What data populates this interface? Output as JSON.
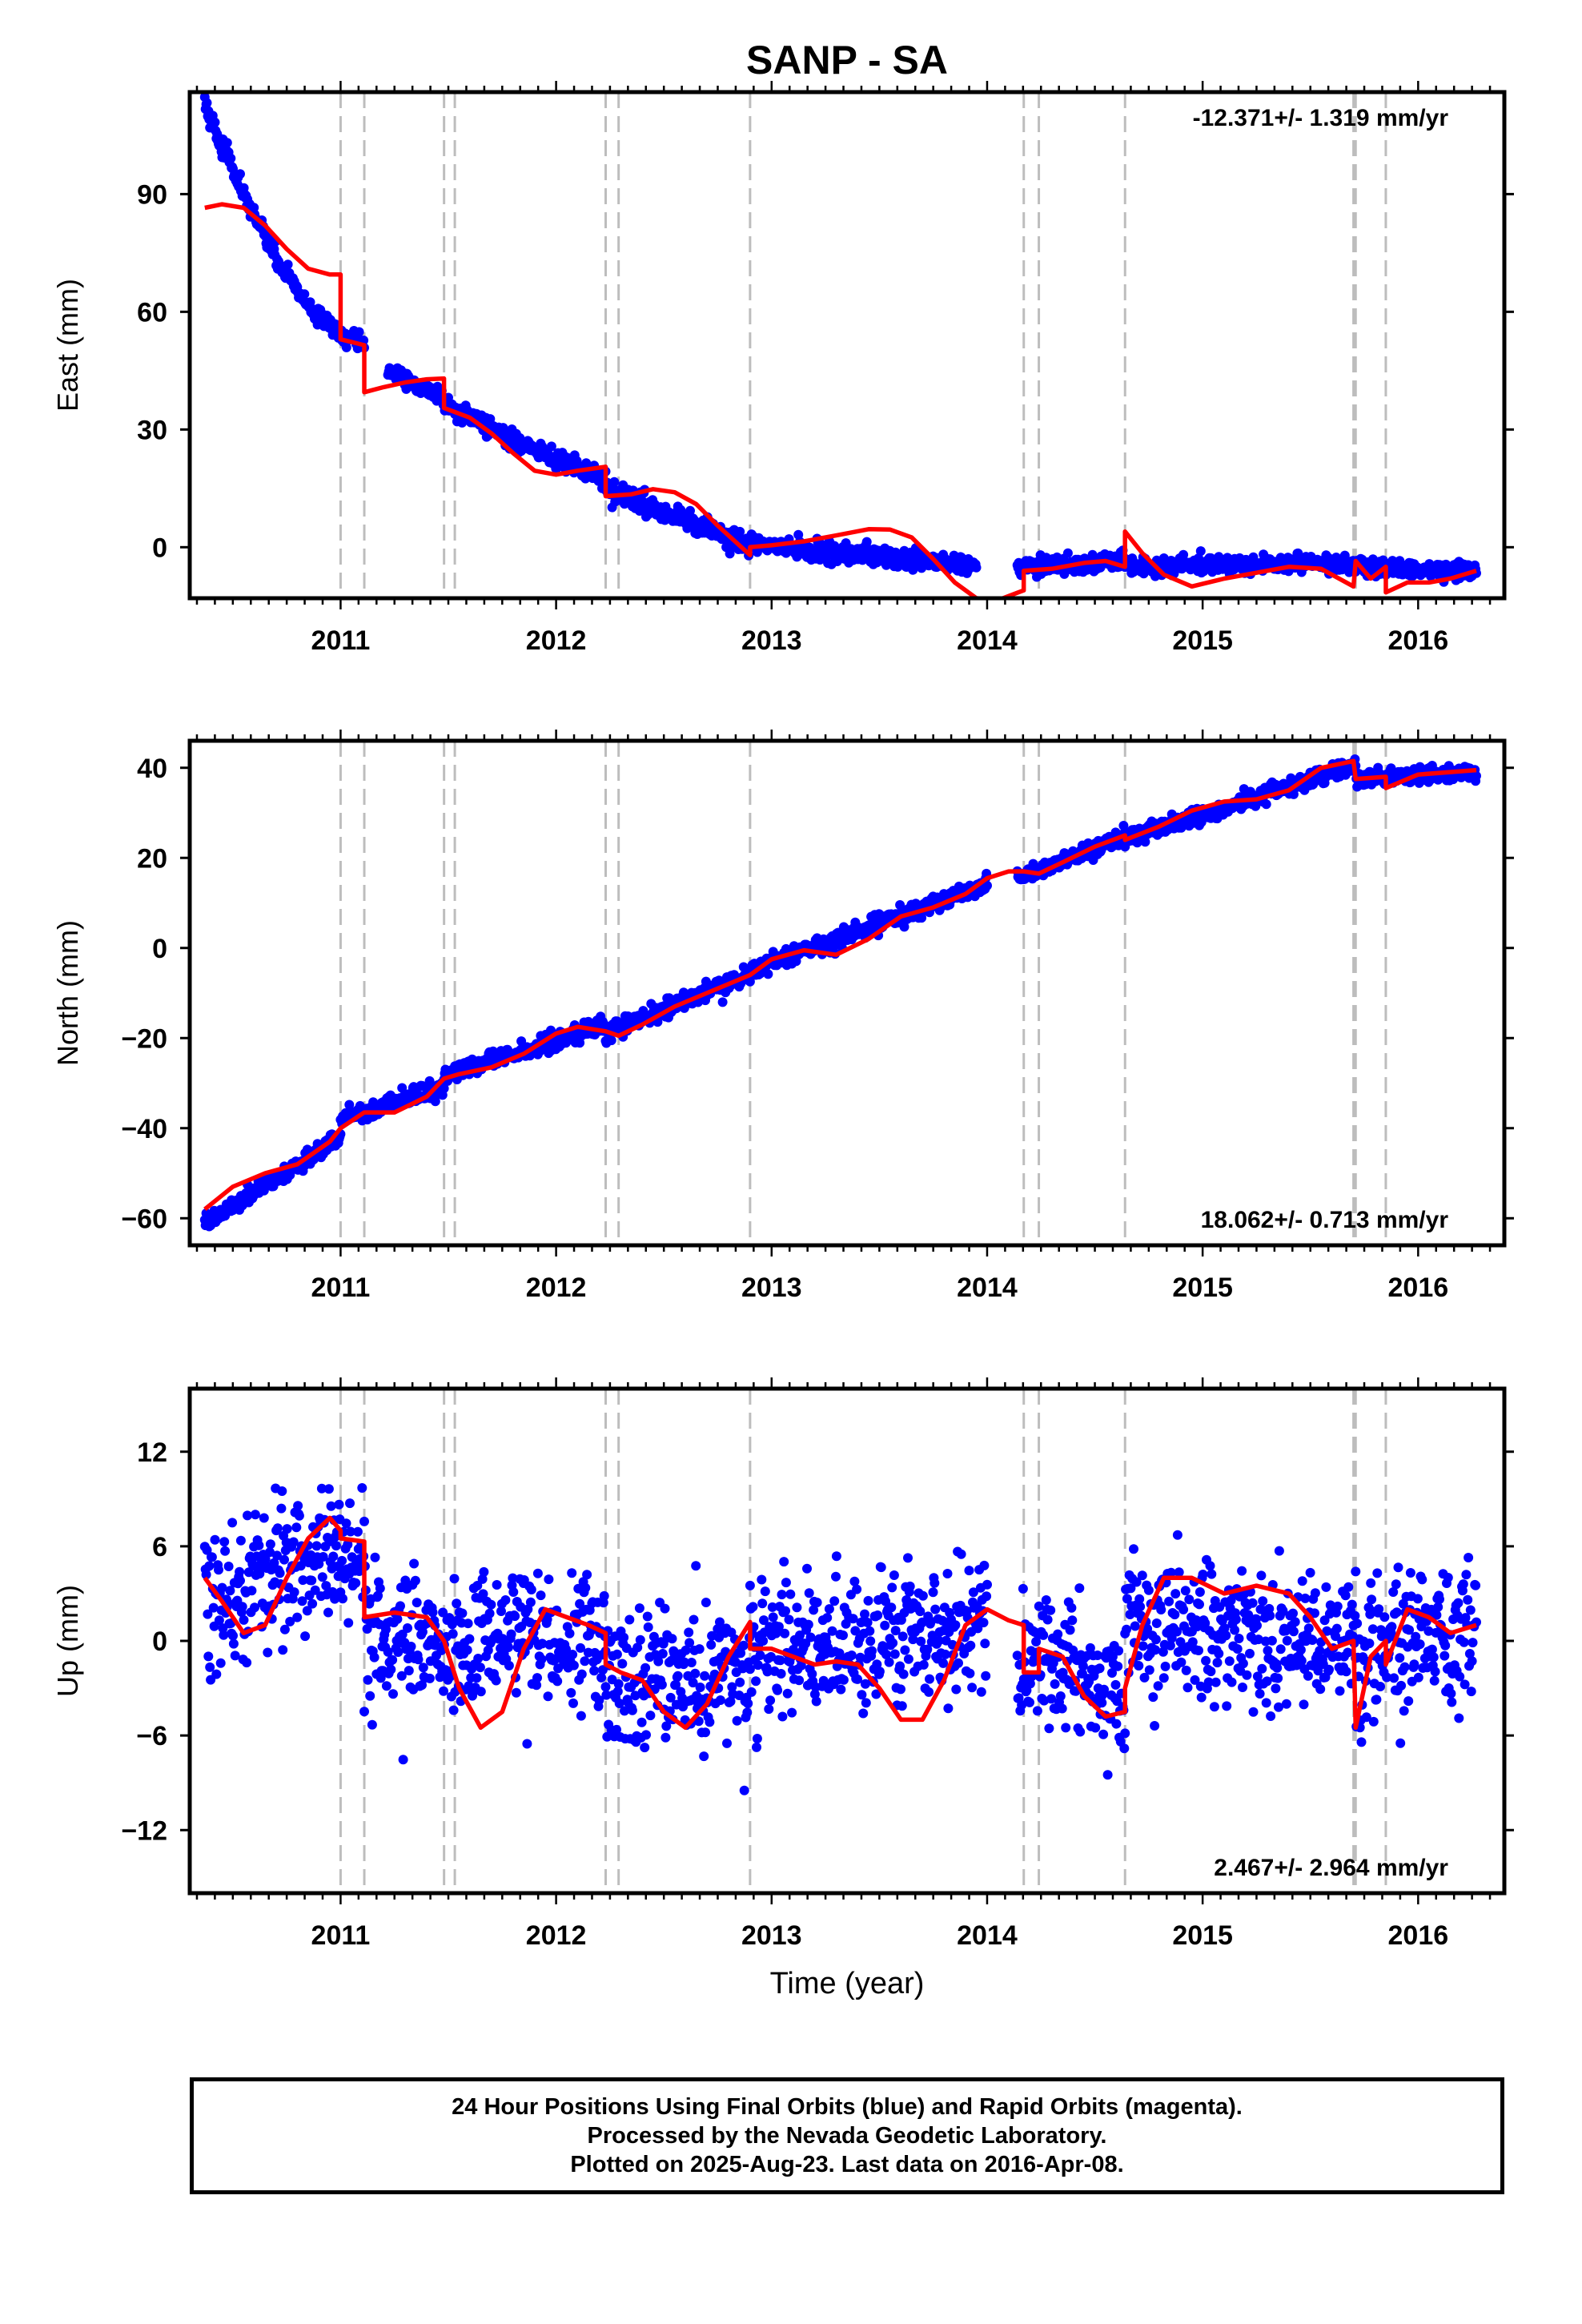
{
  "title": "SANP - SA",
  "caption": {
    "line1": "24 Hour Positions Using Final Orbits (blue) and Rapid Orbits (magenta).",
    "line2": "Processed by the Nevada Geodetic Laboratory.",
    "line3": "Plotted on 2025-Aug-23. Last data on 2016-Apr-08."
  },
  "colors": {
    "final_orbits": "#0000ff",
    "model": "#ff0000",
    "event_lines": "#bdbdbd",
    "axes": "#000000"
  },
  "chart_data": [
    {
      "type": "scatter",
      "component": "east",
      "ylabel": "East (mm)",
      "xlabel": "",
      "rate_label": "-12.371+/- 1.319 mm/yr",
      "rate_position": "top-right",
      "xlim": [
        2010.3,
        2016.4
      ],
      "ylim": [
        -13,
        116
      ],
      "yticks": [
        0,
        30,
        60,
        90
      ],
      "xticks": [
        2011,
        2012,
        2013,
        2014,
        2015,
        2016
      ],
      "event_lines": [
        2011.0,
        2011.11,
        2011.48,
        2011.53,
        2012.23,
        2012.29,
        2012.9,
        2014.17,
        2014.24,
        2014.64,
        2015.7,
        2015.71,
        2015.85
      ],
      "model": [
        [
          2010.37,
          86.5
        ],
        [
          2010.45,
          87.4
        ],
        [
          2010.55,
          86.5
        ],
        [
          2010.65,
          82
        ],
        [
          2010.75,
          76
        ],
        [
          2010.85,
          71
        ],
        [
          2010.95,
          69.5
        ],
        [
          2011.0,
          69.5
        ],
        [
          2011.0,
          53
        ],
        [
          2011.11,
          51.5
        ],
        [
          2011.11,
          39.5
        ],
        [
          2011.2,
          40.8
        ],
        [
          2011.3,
          42
        ],
        [
          2011.4,
          42.8
        ],
        [
          2011.48,
          43
        ],
        [
          2011.48,
          35.5
        ],
        [
          2011.6,
          33
        ],
        [
          2011.7,
          29
        ],
        [
          2011.8,
          24
        ],
        [
          2011.9,
          19.5
        ],
        [
          2012.0,
          18.5
        ],
        [
          2012.1,
          19.5
        ],
        [
          2012.23,
          20.5
        ],
        [
          2012.23,
          13
        ],
        [
          2012.35,
          13.5
        ],
        [
          2012.45,
          14.8
        ],
        [
          2012.55,
          14
        ],
        [
          2012.65,
          11
        ],
        [
          2012.75,
          5.5
        ],
        [
          2012.9,
          -2
        ],
        [
          2012.9,
          0
        ],
        [
          2013.0,
          0.5
        ],
        [
          2013.15,
          1.5
        ],
        [
          2013.3,
          3
        ],
        [
          2013.45,
          4.6
        ],
        [
          2013.55,
          4.5
        ],
        [
          2013.65,
          2.5
        ],
        [
          2013.75,
          -3
        ],
        [
          2013.85,
          -9
        ],
        [
          2013.95,
          -13
        ],
        [
          2014.05,
          -13.5
        ],
        [
          2014.17,
          -11
        ],
        [
          2014.17,
          -6
        ],
        [
          2014.3,
          -5.5
        ],
        [
          2014.45,
          -4
        ],
        [
          2014.55,
          -3.5
        ],
        [
          2014.64,
          -5
        ],
        [
          2014.64,
          4
        ],
        [
          2014.72,
          -1.5
        ],
        [
          2014.82,
          -7
        ],
        [
          2014.95,
          -10
        ],
        [
          2015.1,
          -8
        ],
        [
          2015.25,
          -6.5
        ],
        [
          2015.4,
          -5
        ],
        [
          2015.55,
          -5.5
        ],
        [
          2015.7,
          -10
        ],
        [
          2015.71,
          -3.5
        ],
        [
          2015.78,
          -8
        ],
        [
          2015.85,
          -5
        ],
        [
          2015.85,
          -11.5
        ],
        [
          2015.95,
          -9
        ],
        [
          2016.05,
          -9
        ],
        [
          2016.15,
          -8
        ],
        [
          2016.27,
          -6
        ]
      ],
      "observations": {
        "description": "24 hour daily positions (final orbits)",
        "segments": [
          {
            "t0": 2010.37,
            "t1": 2011.0,
            "y0": 113,
            "y1": 55,
            "curve": 1.5,
            "scatter": 2.2
          },
          {
            "t0": 2011.0,
            "t1": 2011.11,
            "y0": 54,
            "y1": 52,
            "curve": 1,
            "scatter": 2
          },
          {
            "t0": 2011.22,
            "t1": 2011.48,
            "y0": 45,
            "y1": 38,
            "curve": 1,
            "scatter": 2
          },
          {
            "t0": 2011.48,
            "t1": 2012.23,
            "y0": 37,
            "y1": 17.5,
            "curve": 1.2,
            "scatter": 2.2
          },
          {
            "t0": 2012.23,
            "t1": 2012.9,
            "y0": 15,
            "y1": 0,
            "curve": 1,
            "scatter": 2.5
          },
          {
            "t0": 2012.9,
            "t1": 2013.95,
            "y0": 1,
            "y1": -5,
            "curve": 1,
            "scatter": 2
          },
          {
            "t0": 2014.14,
            "t1": 2014.64,
            "y0": -5.5,
            "y1": -3.5,
            "curve": 1,
            "scatter": 2
          },
          {
            "t0": 2014.64,
            "t1": 2015.71,
            "y0": -5,
            "y1": -4,
            "curve": 1,
            "scatter": 2
          },
          {
            "t0": 2015.71,
            "t1": 2016.27,
            "y0": -5,
            "y1": -6,
            "curve": 1,
            "scatter": 2
          }
        ]
      }
    },
    {
      "type": "scatter",
      "component": "north",
      "ylabel": "North (mm)",
      "xlabel": "",
      "rate_label": "18.062+/- 0.713 mm/yr",
      "rate_position": "bottom-right",
      "xlim": [
        2010.3,
        2016.4
      ],
      "ylim": [
        -66,
        46
      ],
      "yticks": [
        -60,
        -40,
        -20,
        0,
        20,
        40
      ],
      "xticks": [
        2011,
        2012,
        2013,
        2014,
        2015,
        2016
      ],
      "event_lines": [
        2011.0,
        2011.11,
        2011.48,
        2011.53,
        2012.23,
        2012.29,
        2012.9,
        2014.17,
        2014.24,
        2014.64,
        2015.7,
        2015.71,
        2015.85
      ],
      "model": [
        [
          2010.37,
          -58
        ],
        [
          2010.5,
          -53
        ],
        [
          2010.65,
          -50
        ],
        [
          2010.8,
          -48
        ],
        [
          2010.95,
          -43
        ],
        [
          2011.0,
          -40
        ],
        [
          2011.11,
          -36.5
        ],
        [
          2011.25,
          -36.5
        ],
        [
          2011.4,
          -33
        ],
        [
          2011.48,
          -29
        ],
        [
          2011.55,
          -28
        ],
        [
          2011.7,
          -26.5
        ],
        [
          2011.85,
          -23.5
        ],
        [
          2012.0,
          -19
        ],
        [
          2012.1,
          -17.5
        ],
        [
          2012.23,
          -18.5
        ],
        [
          2012.29,
          -19.5
        ],
        [
          2012.4,
          -17
        ],
        [
          2012.55,
          -13
        ],
        [
          2012.7,
          -10
        ],
        [
          2012.9,
          -6
        ],
        [
          2013.0,
          -2.5
        ],
        [
          2013.15,
          -0.5
        ],
        [
          2013.3,
          -1.5
        ],
        [
          2013.45,
          2
        ],
        [
          2013.6,
          7
        ],
        [
          2013.75,
          9
        ],
        [
          2013.9,
          12
        ],
        [
          2014.0,
          15.5
        ],
        [
          2014.1,
          17
        ],
        [
          2014.17,
          17
        ],
        [
          2014.24,
          16.5
        ],
        [
          2014.35,
          19
        ],
        [
          2014.5,
          22.5
        ],
        [
          2014.64,
          25
        ],
        [
          2014.64,
          24
        ],
        [
          2014.8,
          27
        ],
        [
          2014.95,
          30.5
        ],
        [
          2015.1,
          32.5
        ],
        [
          2015.25,
          33
        ],
        [
          2015.4,
          35
        ],
        [
          2015.55,
          40
        ],
        [
          2015.7,
          41.5
        ],
        [
          2015.71,
          37.5
        ],
        [
          2015.85,
          38
        ],
        [
          2015.85,
          35.5
        ],
        [
          2016.0,
          38.5
        ],
        [
          2016.27,
          39.5
        ]
      ],
      "observations": {
        "description": "24 hour daily positions (final orbits)",
        "segments": [
          {
            "t0": 2010.37,
            "t1": 2011.0,
            "y0": -61,
            "y1": -42,
            "curve": 0,
            "scatter": 1.7
          },
          {
            "t0": 2011.0,
            "t1": 2011.48,
            "y0": -38,
            "y1": -31,
            "curve": 0,
            "scatter": 1.7
          },
          {
            "t0": 2011.48,
            "t1": 2012.23,
            "y0": -28,
            "y1": -17,
            "curve": 0,
            "scatter": 1.8
          },
          {
            "t0": 2012.23,
            "t1": 2012.9,
            "y0": -19,
            "y1": -6,
            "curve": 0,
            "scatter": 1.8
          },
          {
            "t0": 2012.9,
            "t1": 2014.0,
            "y0": -5,
            "y1": 14,
            "curve": 0,
            "scatter": 1.8
          },
          {
            "t0": 2014.14,
            "t1": 2014.64,
            "y0": 15.5,
            "y1": 24.5,
            "curve": 0,
            "scatter": 1.6
          },
          {
            "t0": 2014.64,
            "t1": 2015.71,
            "y0": 24,
            "y1": 40.5,
            "curve": 0,
            "scatter": 1.7
          },
          {
            "t0": 2015.71,
            "t1": 2016.27,
            "y0": 37.5,
            "y1": 39,
            "curve": 0,
            "scatter": 1.6
          }
        ]
      }
    },
    {
      "type": "scatter",
      "component": "up",
      "ylabel": "Up (mm)",
      "xlabel": "Time (year)",
      "rate_label": "2.467+/- 2.964 mm/yr",
      "rate_position": "bottom-right",
      "xlim": [
        2010.3,
        2016.4
      ],
      "ylim": [
        -16,
        16
      ],
      "yticks": [
        -12,
        -6,
        0,
        6,
        12
      ],
      "xticks": [
        2011,
        2012,
        2013,
        2014,
        2015,
        2016
      ],
      "event_lines": [
        2011.0,
        2011.11,
        2011.48,
        2011.53,
        2012.23,
        2012.29,
        2012.9,
        2014.17,
        2014.24,
        2014.64,
        2015.7,
        2015.71,
        2015.85
      ],
      "model": [
        [
          2010.37,
          4
        ],
        [
          2010.45,
          2.5
        ],
        [
          2010.55,
          0.5
        ],
        [
          2010.65,
          1
        ],
        [
          2010.75,
          4
        ],
        [
          2010.85,
          6.5
        ],
        [
          2010.95,
          7.8
        ],
        [
          2011.0,
          7
        ],
        [
          2011.0,
          6.5
        ],
        [
          2011.11,
          6.3
        ],
        [
          2011.11,
          1.5
        ],
        [
          2011.25,
          1.8
        ],
        [
          2011.4,
          1.5
        ],
        [
          2011.48,
          0
        ],
        [
          2011.55,
          -3
        ],
        [
          2011.65,
          -5.5
        ],
        [
          2011.75,
          -4.5
        ],
        [
          2011.85,
          -0.5
        ],
        [
          2011.95,
          2
        ],
        [
          2012.05,
          1.5
        ],
        [
          2012.15,
          1
        ],
        [
          2012.23,
          0.5
        ],
        [
          2012.23,
          -1.5
        ],
        [
          2012.3,
          -2
        ],
        [
          2012.4,
          -2.5
        ],
        [
          2012.5,
          -4.5
        ],
        [
          2012.6,
          -5.5
        ],
        [
          2012.7,
          -4
        ],
        [
          2012.8,
          -1
        ],
        [
          2012.9,
          1.2
        ],
        [
          2012.9,
          -0.5
        ],
        [
          2013.0,
          -0.5
        ],
        [
          2013.1,
          -1
        ],
        [
          2013.2,
          -1.5
        ],
        [
          2013.3,
          -1.3
        ],
        [
          2013.4,
          -1.5
        ],
        [
          2013.5,
          -3
        ],
        [
          2013.6,
          -5
        ],
        [
          2013.7,
          -5
        ],
        [
          2013.8,
          -2.5
        ],
        [
          2013.9,
          1
        ],
        [
          2014.0,
          2
        ],
        [
          2014.1,
          1.3
        ],
        [
          2014.17,
          1
        ],
        [
          2014.17,
          -2
        ],
        [
          2014.24,
          -2
        ],
        [
          2014.24,
          -0.5
        ],
        [
          2014.35,
          -1
        ],
        [
          2014.45,
          -3.5
        ],
        [
          2014.55,
          -4.8
        ],
        [
          2014.64,
          -4.5
        ],
        [
          2014.64,
          -3
        ],
        [
          2014.72,
          1
        ],
        [
          2014.82,
          4
        ],
        [
          2014.95,
          4
        ],
        [
          2015.1,
          3
        ],
        [
          2015.25,
          3.5
        ],
        [
          2015.4,
          3
        ],
        [
          2015.5,
          1.5
        ],
        [
          2015.6,
          -0.5
        ],
        [
          2015.7,
          0
        ],
        [
          2015.71,
          -5.5
        ],
        [
          2015.78,
          -1
        ],
        [
          2015.85,
          0
        ],
        [
          2015.85,
          -1.5
        ],
        [
          2015.95,
          2
        ],
        [
          2016.05,
          1.5
        ],
        [
          2016.15,
          0.5
        ],
        [
          2016.27,
          1
        ]
      ],
      "observations": {
        "description": "24 hour daily positions (final orbits)",
        "segments": [
          {
            "t0": 2010.37,
            "t1": 2011.11,
            "y0": 3,
            "y1": 6,
            "curve": 0,
            "scatter": 4
          },
          {
            "t0": 2011.11,
            "t1": 2012.23,
            "y0": 0,
            "y1": 0,
            "curve": 0,
            "scatter": 4
          },
          {
            "t0": 2012.23,
            "t1": 2012.9,
            "y0": -3,
            "y1": -2,
            "curve": 0,
            "scatter": 4
          },
          {
            "t0": 2012.9,
            "t1": 2014.0,
            "y0": -1,
            "y1": 1,
            "curve": 0,
            "scatter": 4
          },
          {
            "t0": 2014.14,
            "t1": 2014.64,
            "y0": -1,
            "y1": -4,
            "curve": 0,
            "scatter": 4
          },
          {
            "t0": 2014.64,
            "t1": 2015.71,
            "y0": 1,
            "y1": 0,
            "curve": 0,
            "scatter": 4
          },
          {
            "t0": 2015.71,
            "t1": 2016.27,
            "y0": -1,
            "y1": 1,
            "curve": 0,
            "scatter": 4
          }
        ]
      }
    }
  ]
}
